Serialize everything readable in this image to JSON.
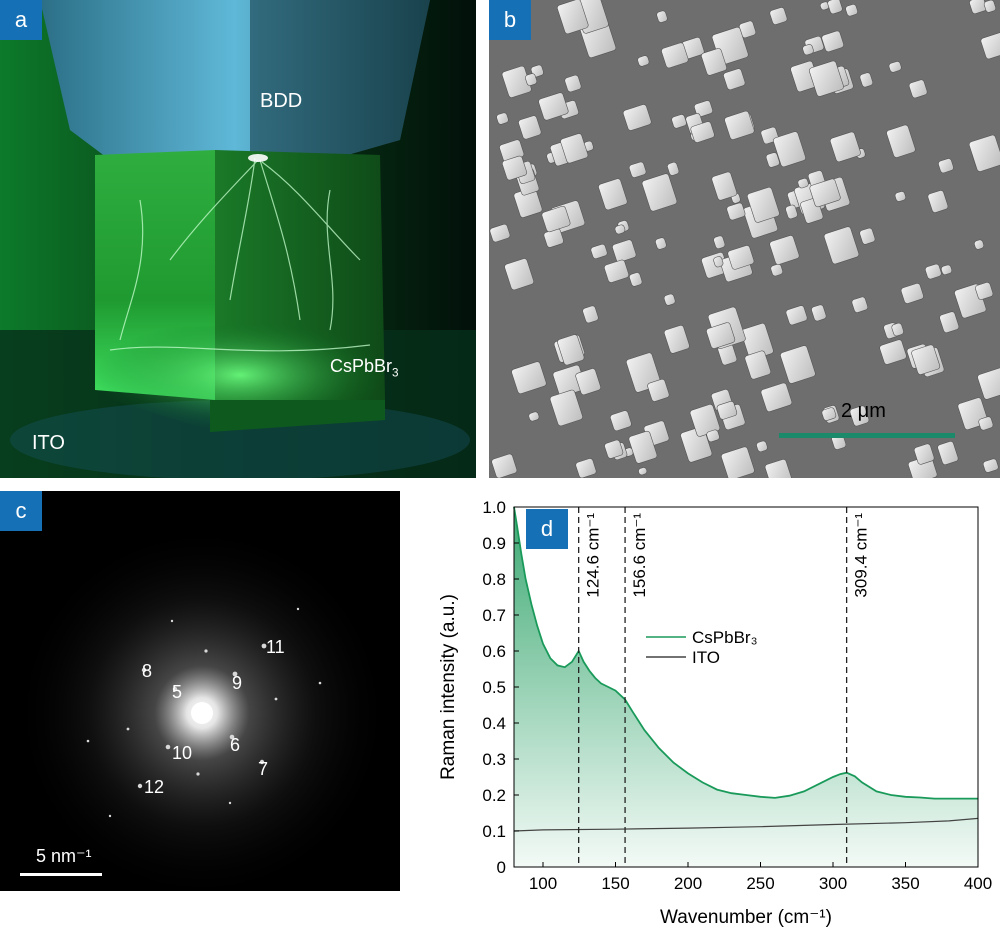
{
  "panel_a": {
    "badge": "a",
    "labels": {
      "top": "BDD",
      "crystal": "CsPbBr",
      "crystal_sub": "3",
      "bottom": "ITO"
    }
  },
  "panel_b": {
    "badge": "b",
    "scale_bar_label": "2 μm",
    "scale_bar_color": "#1a8a6a"
  },
  "panel_c": {
    "badge": "c",
    "scale_bar_label": "5 nm⁻¹",
    "spot_labels": [
      "11",
      "8",
      "5",
      "9",
      "10",
      "6",
      "7",
      "12"
    ]
  },
  "panel_d": {
    "badge": "d"
  },
  "chart_data": {
    "type": "area",
    "xlabel": "Wavenumber (cm⁻¹)",
    "ylabel": "Raman intensity (a.u.)",
    "xlim": [
      80,
      400
    ],
    "ylim": [
      0,
      1.0
    ],
    "xticks": [
      100,
      150,
      200,
      250,
      300,
      350,
      400
    ],
    "xtick_labels": [
      "100",
      "150",
      "200",
      "250",
      "300",
      "350",
      "400"
    ],
    "yticks": [
      0,
      0.1,
      0.2,
      0.3,
      0.4,
      0.5,
      0.6,
      0.7,
      0.8,
      0.9,
      1.0
    ],
    "ytick_labels": [
      "0",
      "0.1",
      "0.2",
      "0.3",
      "0.4",
      "0.5",
      "0.6",
      "0.7",
      "0.8",
      "0.9",
      "1.0"
    ],
    "grid": false,
    "legend_position": "center-right",
    "series": [
      {
        "name": "CsPbBr₃",
        "color": "#1a9a5a",
        "x": [
          80,
          82,
          85,
          88,
          92,
          96,
          100,
          105,
          110,
          115,
          120,
          124.6,
          128,
          132,
          136,
          140,
          145,
          150,
          156.6,
          162,
          170,
          180,
          190,
          200,
          210,
          220,
          230,
          240,
          250,
          260,
          270,
          280,
          290,
          300,
          305,
          309.4,
          315,
          320,
          330,
          340,
          350,
          360,
          370,
          380,
          390,
          400
        ],
        "y": [
          1.0,
          0.95,
          0.87,
          0.8,
          0.73,
          0.67,
          0.62,
          0.58,
          0.56,
          0.555,
          0.57,
          0.6,
          0.57,
          0.545,
          0.525,
          0.51,
          0.5,
          0.49,
          0.465,
          0.43,
          0.38,
          0.33,
          0.29,
          0.26,
          0.235,
          0.215,
          0.205,
          0.2,
          0.195,
          0.192,
          0.198,
          0.21,
          0.23,
          0.25,
          0.258,
          0.262,
          0.252,
          0.235,
          0.21,
          0.2,
          0.195,
          0.193,
          0.19,
          0.19,
          0.19,
          0.19
        ]
      },
      {
        "name": "ITO",
        "color": "#444444",
        "x": [
          80,
          100,
          150,
          200,
          250,
          300,
          350,
          380,
          400
        ],
        "y": [
          0.1,
          0.103,
          0.105,
          0.108,
          0.112,
          0.118,
          0.123,
          0.128,
          0.135
        ]
      }
    ],
    "annotations": [
      {
        "x": 124.6,
        "label": "124.6 cm⁻¹"
      },
      {
        "x": 156.6,
        "label": "156.6 cm⁻¹"
      },
      {
        "x": 309.4,
        "label": "309.4 cm⁻¹"
      }
    ]
  }
}
